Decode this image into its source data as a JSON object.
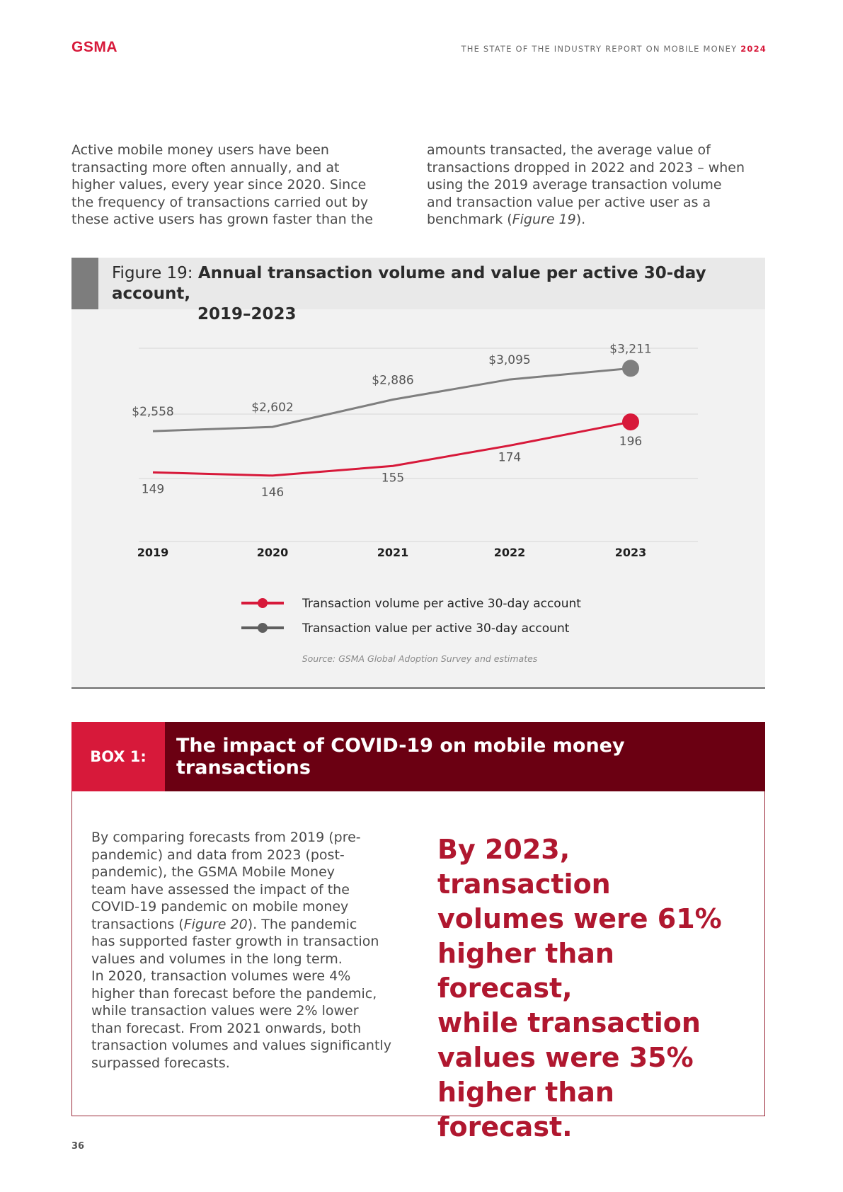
{
  "header": {
    "logo": "GSMA",
    "running_title": "THE STATE OF THE INDUSTRY REPORT ON MOBILE MONEY",
    "running_year": "2024"
  },
  "intro": {
    "left_lines": [
      "Active mobile money users have been",
      "transacting more often annually, and at",
      "higher values, every year since 2020. Since",
      "the frequency of transactions carried out by",
      "these active users has grown faster than the"
    ],
    "right_lines": [
      "amounts transacted, the average value of",
      "transactions dropped in 2022 and 2023 – when",
      "using the 2019 average transaction volume",
      "and transaction value per active user as a"
    ],
    "right_last_prefix": "benchmark (",
    "right_last_ref": "Figure 19",
    "right_last_suffix": ")."
  },
  "figure": {
    "prefix": "Figure 19: ",
    "title_line1": "Annual transaction volume and value per active 30-day account,",
    "title_line2": "2019–2023",
    "source": "Source: GSMA Global Adoption Survey and estimates"
  },
  "chart_data": {
    "type": "line",
    "categories": [
      "2019",
      "2020",
      "2021",
      "2022",
      "2023"
    ],
    "series": [
      {
        "name": "Transaction volume per active 30-day account",
        "color": "#d7193a",
        "values": [
          149,
          146,
          155,
          174,
          196
        ],
        "labels": [
          "149",
          "146",
          "155",
          "174",
          "196"
        ]
      },
      {
        "name": "Transaction value per active 30-day account",
        "color": "#7f7f7f",
        "values": [
          2558,
          2602,
          2886,
          3095,
          3211
        ],
        "labels": [
          "$2,558",
          "$2,602",
          "$2,886",
          "$3,095",
          "$3,211"
        ]
      }
    ],
    "grid": true,
    "legend_position": "bottom"
  },
  "box": {
    "label": "BOX 1:",
    "title": "The impact of COVID-19 on mobile money transactions",
    "body_lines": [
      "By comparing forecasts from 2019 (pre-",
      "pandemic) and data from 2023 (post-",
      "pandemic), the GSMA Mobile Money",
      "team have assessed the impact of the",
      "COVID-19 pandemic on mobile money"
    ],
    "body_ref_prefix": "transactions (",
    "body_ref": "Figure 20",
    "body_ref_suffix": "). The pandemic",
    "body_lines_2": [
      "has supported faster growth in transaction",
      "values and volumes in the long term.",
      "In 2020, transaction volumes were 4%",
      "higher than forecast before the pandemic,",
      "while transaction values were 2% lower",
      "than forecast. From 2021 onwards, both",
      "transaction volumes and values significantly",
      "surpassed forecasts."
    ],
    "pull_quote_lines": [
      "By 2023, transaction",
      "volumes were 61%",
      "higher than forecast,",
      "while transaction",
      "values were 35%",
      "higher than forecast."
    ]
  },
  "page_number": "36"
}
